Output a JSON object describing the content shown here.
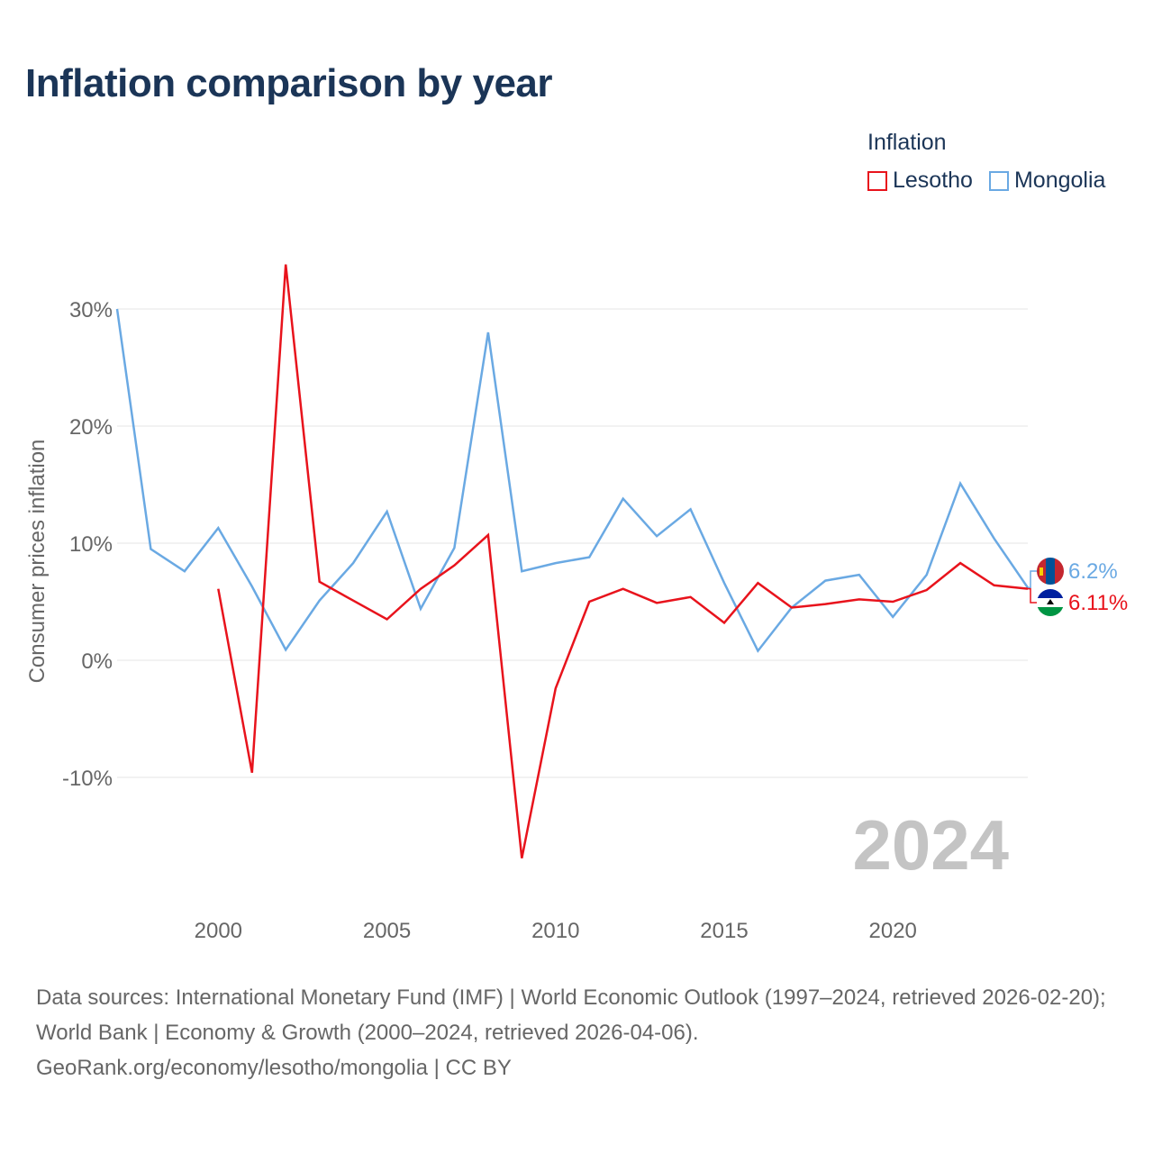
{
  "title": "Inflation comparison by year",
  "legend": {
    "title": "Inflation",
    "items": [
      {
        "label": "Lesotho",
        "color": "#e8131c"
      },
      {
        "label": "Mongolia",
        "color": "#6aa9e3"
      }
    ]
  },
  "year_watermark": "2024",
  "footer": {
    "line1": "Data sources: International Monetary Fund (IMF) | World Economic Outlook (1997–2024, retrieved 2026-02-20); World Bank | Economy & Growth (2000–2024, retrieved 2026-04-06).",
    "line2": "GeoRank.org/economy/lesotho/mongolia | CC BY"
  },
  "chart_data": {
    "type": "line",
    "title": "Inflation comparison by year",
    "xlabel": "",
    "ylabel": "Consumer prices inflation",
    "xlim": [
      1997,
      2024
    ],
    "ylim": [
      -20,
      35
    ],
    "x_ticks": [
      2000,
      2005,
      2010,
      2015,
      2020
    ],
    "y_ticks": [
      -10,
      0,
      10,
      20,
      30
    ],
    "y_tick_labels": [
      "-10%",
      "0%",
      "10%",
      "20%",
      "30%"
    ],
    "grid": true,
    "legend_position": "top-right",
    "series": [
      {
        "name": "Lesotho",
        "color": "#e8131c",
        "x": [
          2000,
          2001,
          2002,
          2003,
          2004,
          2005,
          2006,
          2007,
          2008,
          2009,
          2010,
          2011,
          2012,
          2013,
          2014,
          2015,
          2016,
          2017,
          2018,
          2019,
          2020,
          2021,
          2022,
          2023,
          2024
        ],
        "values": [
          6.1,
          -9.6,
          33.8,
          6.7,
          5.1,
          3.5,
          6.1,
          8.1,
          10.7,
          -16.9,
          -2.4,
          5.0,
          6.1,
          4.9,
          5.4,
          3.2,
          6.6,
          4.5,
          4.8,
          5.2,
          5.0,
          6.0,
          8.3,
          6.4,
          6.11
        ],
        "end_label": "6.11%"
      },
      {
        "name": "Mongolia",
        "color": "#6aa9e3",
        "x": [
          1997,
          1998,
          1999,
          2000,
          2001,
          2002,
          2003,
          2004,
          2005,
          2006,
          2007,
          2008,
          2009,
          2010,
          2011,
          2012,
          2013,
          2014,
          2015,
          2016,
          2017,
          2018,
          2019,
          2020,
          2021,
          2022,
          2023,
          2024
        ],
        "values": [
          30.0,
          9.5,
          7.6,
          11.3,
          6.3,
          0.9,
          5.1,
          8.3,
          12.7,
          4.4,
          9.6,
          28.0,
          7.6,
          8.3,
          8.8,
          13.8,
          10.6,
          12.9,
          6.6,
          0.8,
          4.5,
          6.8,
          7.3,
          3.7,
          7.3,
          15.1,
          10.4,
          6.2
        ],
        "end_label": "6.2%"
      }
    ]
  }
}
